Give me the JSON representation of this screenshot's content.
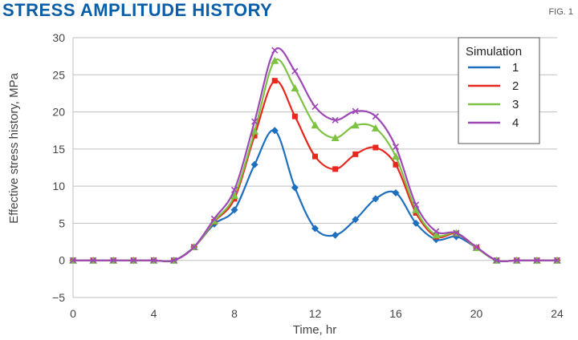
{
  "header": {
    "title": "STRESS AMPLITUDE HISTORY",
    "fig_label": "FIG. 1",
    "title_color": "#0a5ea8"
  },
  "chart_data": {
    "type": "line",
    "title": "",
    "xlabel": "Time, hr",
    "ylabel": "Effective stress history, MPa",
    "xlim": [
      0,
      24
    ],
    "ylim": [
      -5,
      30
    ],
    "xticks": [
      "0",
      "4",
      "8",
      "12",
      "16",
      "20",
      "24"
    ],
    "yticks": [
      "−5",
      "0",
      "5",
      "10",
      "15",
      "20",
      "25",
      "30"
    ],
    "grid": "horizontal",
    "legend": {
      "title": "Simulation",
      "position": "top-right"
    },
    "x": [
      0,
      1,
      2,
      3,
      4,
      5,
      6,
      7,
      8,
      9,
      10,
      11,
      12,
      13,
      14,
      15,
      16,
      17,
      18,
      19,
      20,
      21,
      22,
      23,
      24
    ],
    "series": [
      {
        "name": "1",
        "color": "#1f6fbf",
        "marker": "diamond",
        "values": [
          0,
          0,
          0,
          0,
          0,
          0,
          1.8,
          4.9,
          6.8,
          12.9,
          17.5,
          9.8,
          4.3,
          3.4,
          5.5,
          8.3,
          9.1,
          5.0,
          2.8,
          3.2,
          1.7,
          0,
          0,
          0,
          0
        ]
      },
      {
        "name": "2",
        "color": "#e8281e",
        "marker": "square",
        "values": [
          0,
          0,
          0,
          0,
          0,
          0,
          1.8,
          5.2,
          8.3,
          16.8,
          24.2,
          19.4,
          14.0,
          12.3,
          14.3,
          15.2,
          12.9,
          6.4,
          3.2,
          3.6,
          1.7,
          0,
          0,
          0,
          0
        ]
      },
      {
        "name": "3",
        "color": "#7dc242",
        "marker": "triangle",
        "values": [
          0,
          0,
          0,
          0,
          0,
          0,
          1.8,
          5.3,
          8.7,
          17.4,
          26.9,
          23.2,
          18.2,
          16.5,
          18.2,
          17.8,
          14.0,
          6.8,
          3.4,
          3.7,
          1.7,
          0,
          0,
          0,
          0
        ]
      },
      {
        "name": "4",
        "color": "#9e48b6",
        "marker": "x",
        "values": [
          0,
          0,
          0,
          0,
          0,
          0,
          1.8,
          5.6,
          9.5,
          18.7,
          28.3,
          25.5,
          20.7,
          18.9,
          20.1,
          19.4,
          15.3,
          7.5,
          3.9,
          3.7,
          1.8,
          0,
          0,
          0,
          0
        ]
      }
    ]
  }
}
